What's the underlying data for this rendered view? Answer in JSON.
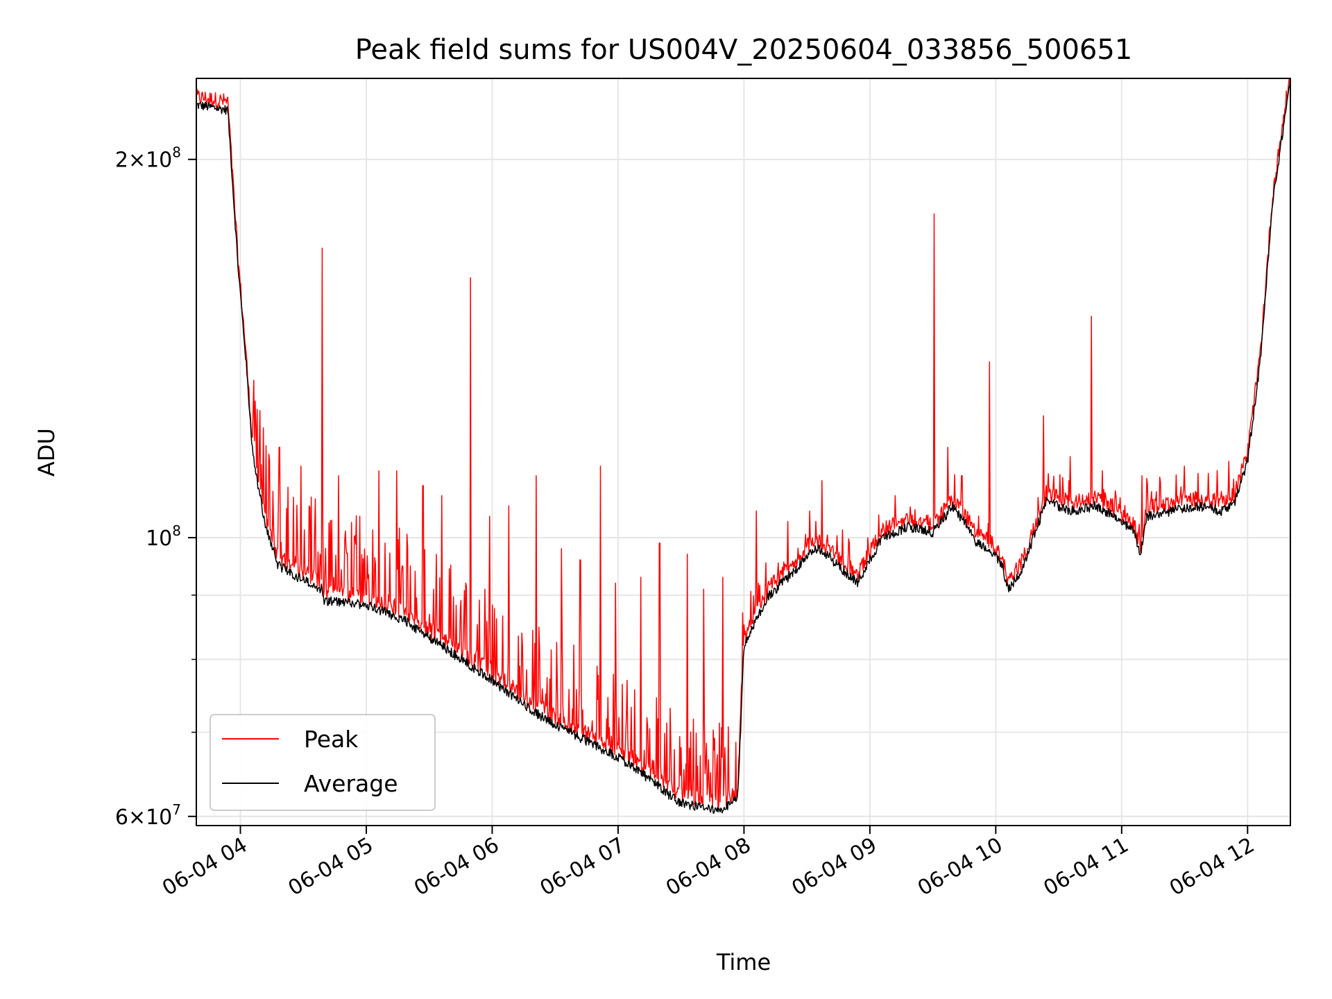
{
  "chart_data": {
    "type": "line",
    "title": "Peak field sums for US004V_20250604_033856_500651",
    "xlabel": "Time",
    "ylabel": "ADU",
    "yscale": "log",
    "xlim_hours": [
      3.65,
      12.34
    ],
    "ylim": [
      59000000,
      232000000
    ],
    "grid": true,
    "legend_position": "lower-left",
    "x_ticks": [
      {
        "hour": 4,
        "label": "06-04 04"
      },
      {
        "hour": 5,
        "label": "06-04 05"
      },
      {
        "hour": 6,
        "label": "06-04 06"
      },
      {
        "hour": 7,
        "label": "06-04 07"
      },
      {
        "hour": 8,
        "label": "06-04 08"
      },
      {
        "hour": 9,
        "label": "06-04 09"
      },
      {
        "hour": 10,
        "label": "06-04 10"
      },
      {
        "hour": 11,
        "label": "06-04 11"
      },
      {
        "hour": 12,
        "label": "06-04 12"
      }
    ],
    "y_ticks": [
      {
        "value": 200000000,
        "mantissa": "2",
        "exp": "8"
      },
      {
        "value": 100000000,
        "mantissa": "",
        "exp": "8"
      },
      {
        "value": 60000000,
        "mantissa": "6",
        "exp": "7"
      }
    ],
    "y_minor_ticks": [
      70000000,
      80000000,
      90000000
    ],
    "series": [
      {
        "name": "Average",
        "color": "#000000",
        "x": [
          3.65,
          3.9,
          3.98,
          4.04,
          4.1,
          4.2,
          4.3,
          4.5,
          4.65,
          4.66,
          5.0,
          5.3,
          5.6,
          6.0,
          6.3,
          6.5,
          6.8,
          7.1,
          7.4,
          7.5,
          7.8,
          7.95,
          8.0,
          8.1,
          8.2,
          8.4,
          8.5,
          8.6,
          8.7,
          8.9,
          9.0,
          9.1,
          9.3,
          9.5,
          9.6,
          9.65,
          9.75,
          9.85,
          9.95,
          10.05,
          10.1,
          10.2,
          10.3,
          10.4,
          10.6,
          10.8,
          11.0,
          11.1,
          11.15,
          11.2,
          11.4,
          11.6,
          11.8,
          11.9,
          12.0,
          12.1,
          12.2,
          12.34
        ],
        "y": [
          221000000,
          219000000,
          165000000,
          140000000,
          116000000,
          102000000,
          95000000,
          92500000,
          91000000,
          89000000,
          88500000,
          86000000,
          82000000,
          77000000,
          73000000,
          71000000,
          68500000,
          66000000,
          62500000,
          61500000,
          60500000,
          62000000,
          82000000,
          86000000,
          90000000,
          94000000,
          97000000,
          98000000,
          96000000,
          92000000,
          96000000,
          100000000,
          102000000,
          101000000,
          104000000,
          106000000,
          103000000,
          99000000,
          98000000,
          95000000,
          91000000,
          94000000,
          100000000,
          107000000,
          105000000,
          106000000,
          103000000,
          101000000,
          97000000,
          104000000,
          105000000,
          106000000,
          105000000,
          107000000,
          115000000,
          138000000,
          185000000,
          232000000
        ]
      },
      {
        "name": "Peak",
        "color": "#ff0000",
        "spikes": [
          {
            "x": 4.31,
            "y": 118000000
          },
          {
            "x": 4.48,
            "y": 114000000
          },
          {
            "x": 4.65,
            "y": 170000000
          },
          {
            "x": 4.78,
            "y": 112000000
          },
          {
            "x": 4.95,
            "y": 104000000
          },
          {
            "x": 5.1,
            "y": 113000000
          },
          {
            "x": 5.24,
            "y": 113000000
          },
          {
            "x": 5.45,
            "y": 110000000
          },
          {
            "x": 5.6,
            "y": 108000000
          },
          {
            "x": 5.83,
            "y": 161000000
          },
          {
            "x": 5.98,
            "y": 104000000
          },
          {
            "x": 6.13,
            "y": 106000000
          },
          {
            "x": 6.35,
            "y": 112000000
          },
          {
            "x": 6.55,
            "y": 98000000
          },
          {
            "x": 6.7,
            "y": 96000000
          },
          {
            "x": 6.86,
            "y": 114000000
          },
          {
            "x": 6.98,
            "y": 92000000
          },
          {
            "x": 7.18,
            "y": 93000000
          },
          {
            "x": 7.33,
            "y": 99000000
          },
          {
            "x": 7.55,
            "y": 97000000
          },
          {
            "x": 7.68,
            "y": 91000000
          },
          {
            "x": 7.83,
            "y": 93000000
          },
          {
            "x": 8.1,
            "y": 105000000
          },
          {
            "x": 8.35,
            "y": 103000000
          },
          {
            "x": 8.52,
            "y": 105000000
          },
          {
            "x": 8.62,
            "y": 111000000
          },
          {
            "x": 9.2,
            "y": 108000000
          },
          {
            "x": 9.51,
            "y": 181000000
          },
          {
            "x": 9.62,
            "y": 118000000
          },
          {
            "x": 9.73,
            "y": 112000000
          },
          {
            "x": 9.95,
            "y": 138000000
          },
          {
            "x": 10.38,
            "y": 125000000
          },
          {
            "x": 10.59,
            "y": 116000000
          },
          {
            "x": 10.76,
            "y": 150000000
          },
          {
            "x": 11.16,
            "y": 112000000
          },
          {
            "x": 11.5,
            "y": 114000000
          },
          {
            "x": 11.85,
            "y": 115000000
          }
        ]
      }
    ]
  }
}
